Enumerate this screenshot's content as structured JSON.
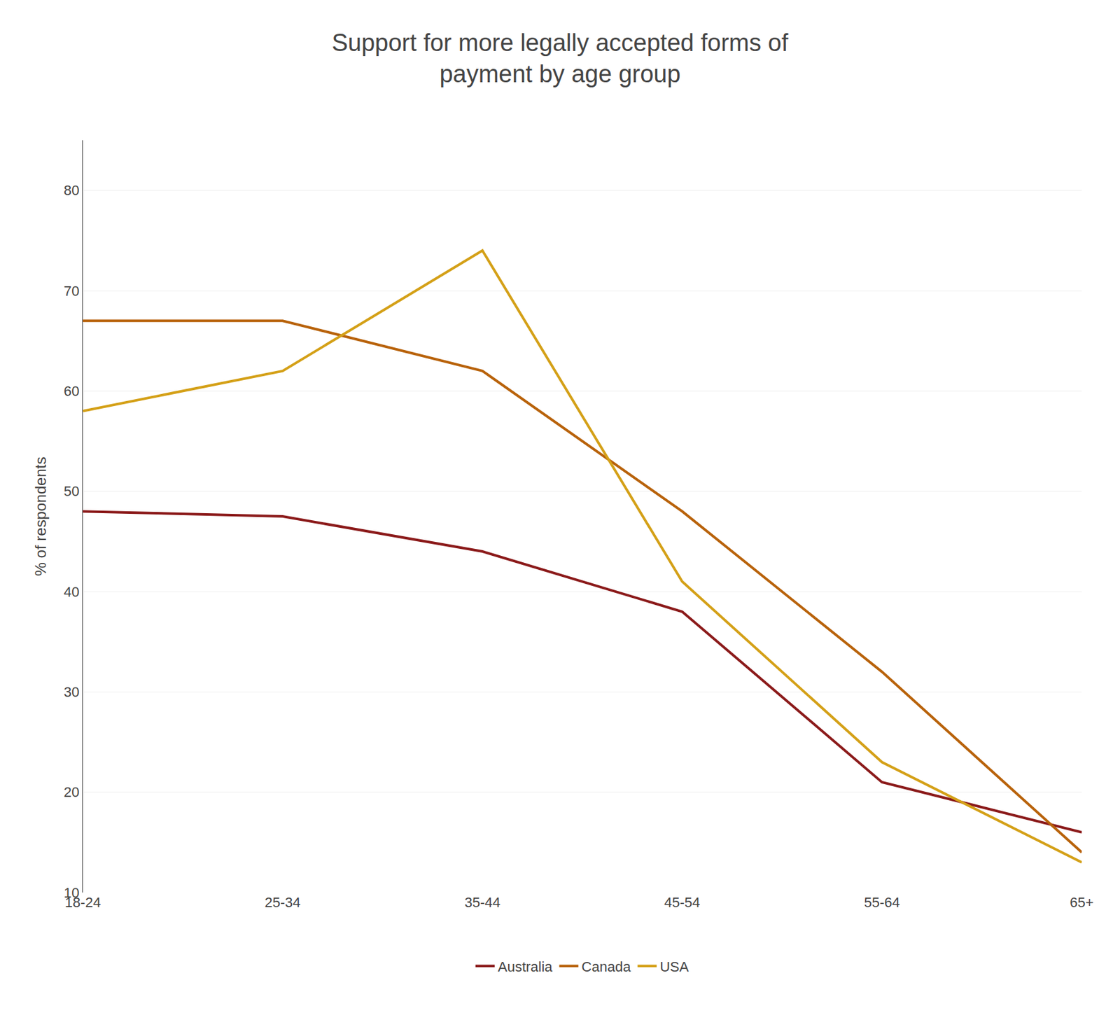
{
  "chart_data": {
    "type": "line",
    "title": "Support for more legally accepted forms of\npayment by age group",
    "ylabel": "% of respondents",
    "categories": [
      "18-24",
      "25-34",
      "35-44",
      "45-54",
      "55-64",
      "65+"
    ],
    "series": [
      {
        "name": "Australia",
        "color": "#8B1A1A",
        "values": [
          48,
          47.5,
          44,
          38,
          21,
          16
        ]
      },
      {
        "name": "Canada",
        "color": "#B8620A",
        "values": [
          67,
          67,
          62,
          48,
          32,
          14
        ]
      },
      {
        "name": "USA",
        "color": "#D4A017",
        "values": [
          58,
          62,
          74,
          41,
          23,
          13
        ]
      }
    ],
    "ylim": [
      10,
      85
    ],
    "yticks": [
      10,
      20,
      30,
      40,
      50,
      60,
      70,
      80
    ],
    "grid": true,
    "legend": "bottom"
  }
}
